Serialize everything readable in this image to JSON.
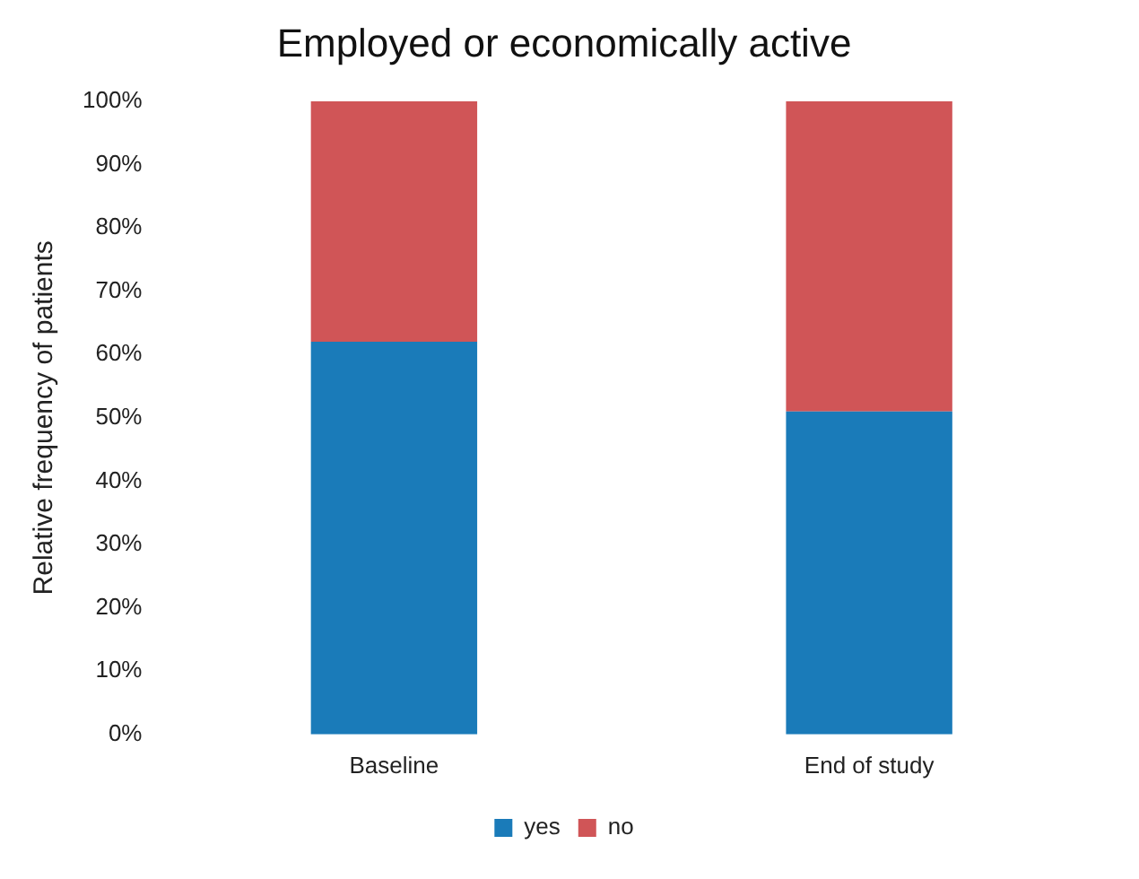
{
  "chart_data": {
    "type": "bar",
    "title": "Employed or economically active",
    "ylabel": "Relative frequency of patients",
    "categories": [
      "Baseline",
      "End of study"
    ],
    "stacked": true,
    "series": [
      {
        "name": "yes",
        "color": "#1a7bb9",
        "values": [
          62,
          51
        ]
      },
      {
        "name": "no",
        "color": "#d05557",
        "values": [
          38,
          49
        ]
      }
    ],
    "ylim": [
      0,
      100
    ],
    "yticks": [
      {
        "value": 0,
        "label": "0%"
      },
      {
        "value": 10,
        "label": "10%"
      },
      {
        "value": 20,
        "label": "20%"
      },
      {
        "value": 30,
        "label": "30%"
      },
      {
        "value": 40,
        "label": "40%"
      },
      {
        "value": 50,
        "label": "50%"
      },
      {
        "value": 60,
        "label": "60%"
      },
      {
        "value": 70,
        "label": "70%"
      },
      {
        "value": 80,
        "label": "80%"
      },
      {
        "value": 90,
        "label": "90%"
      },
      {
        "value": 100,
        "label": "100%"
      }
    ],
    "grid": false,
    "legend": "bottom"
  }
}
